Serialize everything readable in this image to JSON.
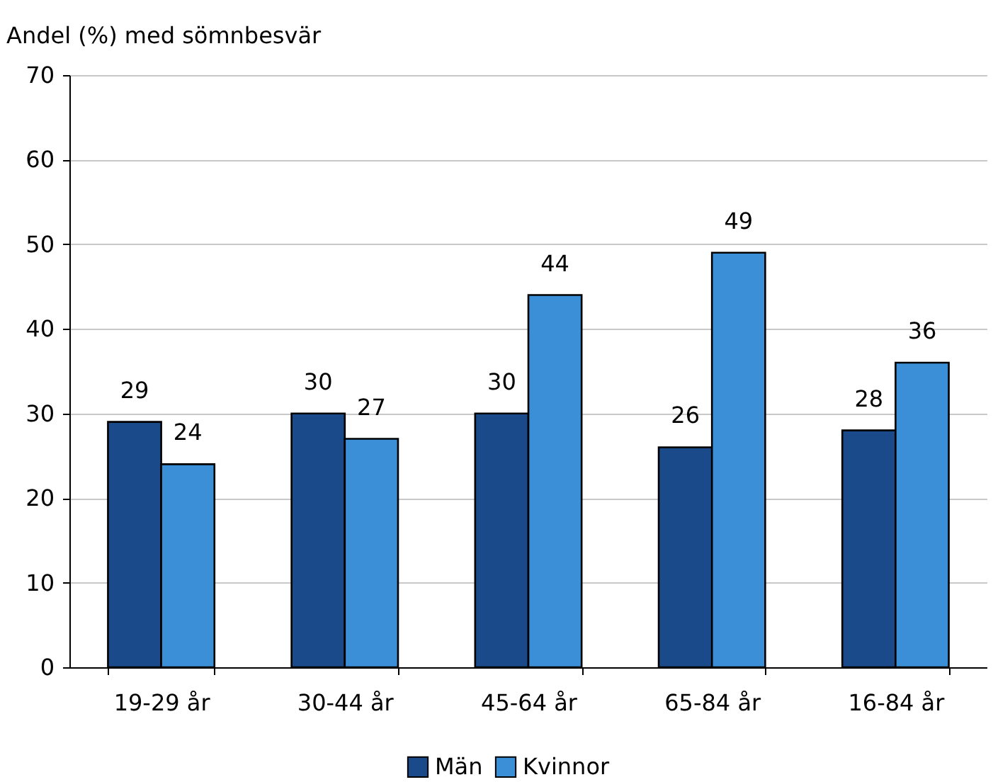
{
  "chart_data": {
    "type": "bar",
    "ylabel": "Andel (%) med sömnbesvär",
    "categories": [
      "19-29 år",
      "30-44 år",
      "45-64 år",
      "65-84 år",
      "16-84 år"
    ],
    "series": [
      {
        "name": "Män",
        "color": "#1a4a8a",
        "values": [
          29,
          30,
          30,
          26,
          28
        ]
      },
      {
        "name": "Kvinnor",
        "color": "#3a8fd6",
        "values": [
          24,
          27,
          44,
          49,
          36
        ]
      }
    ],
    "ylim": [
      0,
      70
    ],
    "yticks": [
      0,
      10,
      20,
      30,
      40,
      50,
      60,
      70
    ],
    "grid": "y",
    "legend": "bottom",
    "data_labels": true
  }
}
